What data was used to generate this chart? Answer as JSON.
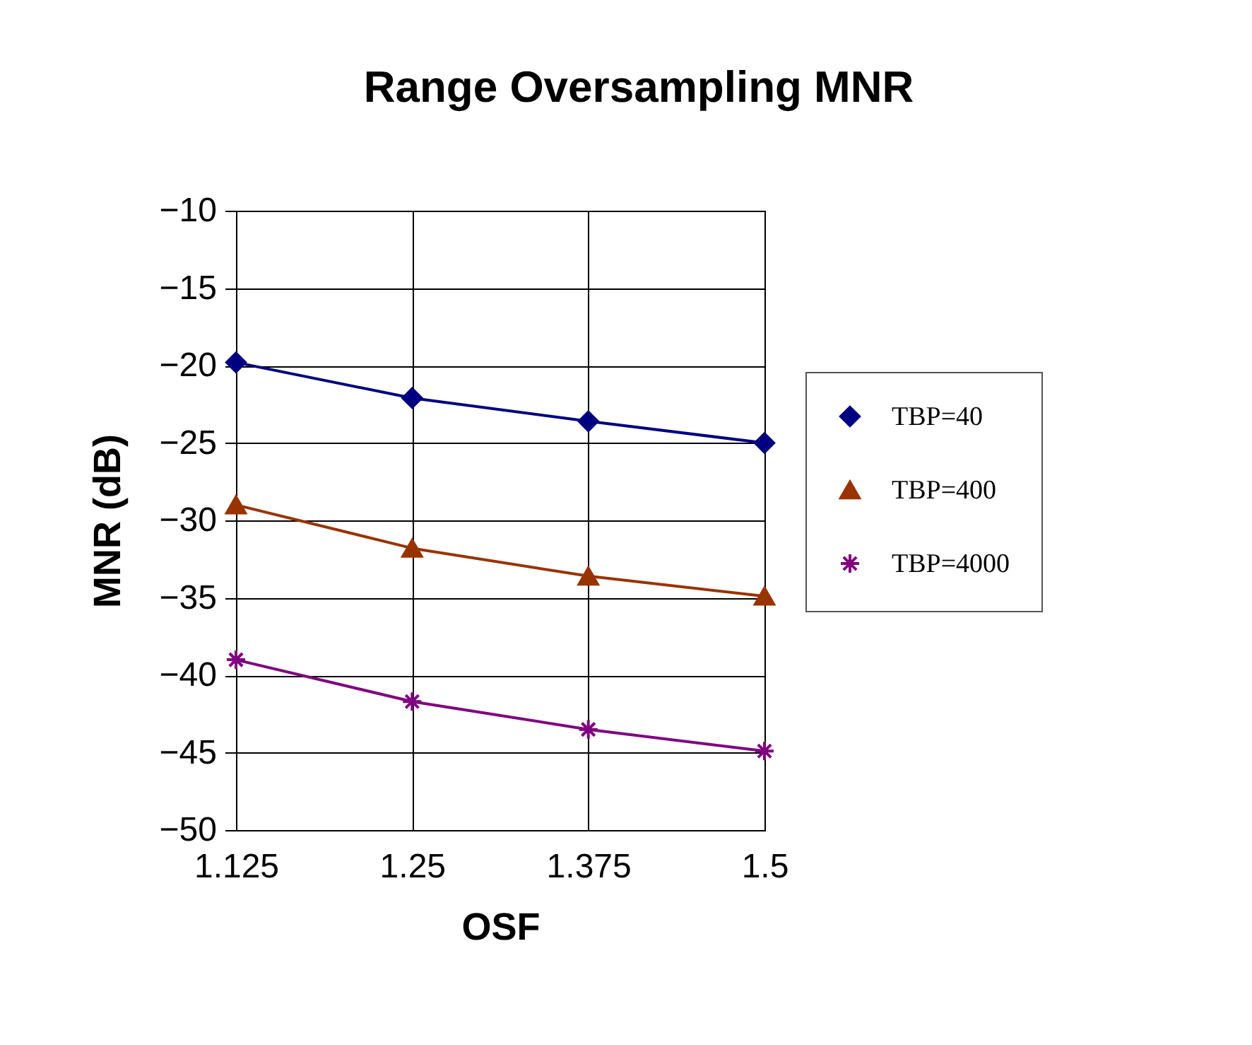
{
  "chart_data": {
    "type": "line",
    "title": "Range Oversampling MNR",
    "xlabel": "OSF",
    "ylabel": "MNR (dB)",
    "x": [
      1.125,
      1.25,
      1.375,
      1.5
    ],
    "series": [
      {
        "name": "TBP=40",
        "color": "#000080",
        "marker": "diamond",
        "values": [
          -19.8,
          -22.1,
          -23.6,
          -25.0
        ]
      },
      {
        "name": "TBP=400",
        "color": "#993300",
        "marker": "triangle",
        "values": [
          -29.0,
          -31.8,
          -33.6,
          -34.9
        ]
      },
      {
        "name": "TBP=4000",
        "color": "#800080",
        "marker": "cross",
        "values": [
          -39.0,
          -41.7,
          -43.5,
          -44.9
        ]
      }
    ],
    "xlim": [
      1.125,
      1.5
    ],
    "xticks": [
      {
        "value": 1.125,
        "label": "1.125"
      },
      {
        "value": 1.25,
        "label": "1.25"
      },
      {
        "value": 1.375,
        "label": "1.375"
      },
      {
        "value": 1.5,
        "label": "1.5"
      }
    ],
    "ylim": [
      -50,
      -10
    ],
    "yticks": [
      -50,
      -45,
      -40,
      -35,
      -30,
      -25,
      -20,
      -15,
      -10
    ],
    "grid": true,
    "legend": "right",
    "line_style": "solid"
  }
}
